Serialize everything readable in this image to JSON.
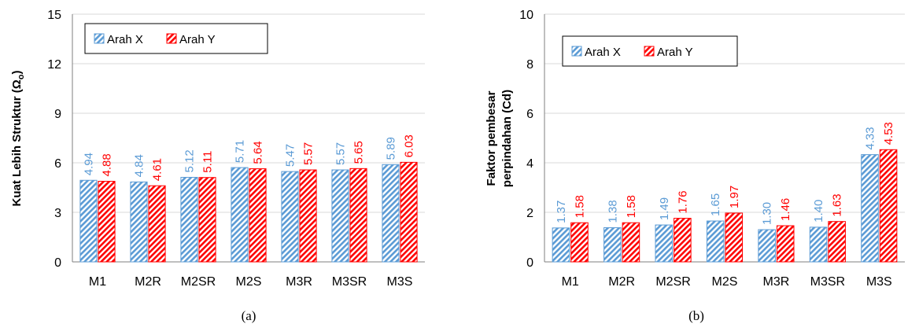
{
  "colors": {
    "arah_x": "#5b9bd5",
    "arah_y": "#ff0000",
    "gridline": "#d9d9d9",
    "axis": "#7f7f7f"
  },
  "chart_data": [
    {
      "type": "bar",
      "caption": "(a)",
      "ylabel": "Kuat Lebih Struktur (Ω₀)",
      "xlabel": "",
      "ylim": [
        0,
        15
      ],
      "yticks": [
        "0",
        "3",
        "6",
        "9",
        "12",
        "15"
      ],
      "ytick_values": [
        0,
        3,
        6,
        9,
        12,
        15
      ],
      "grid": true,
      "legend_position": "top-left",
      "categories": [
        "M1",
        "M2R",
        "M2SR",
        "M2S",
        "M3R",
        "M3SR",
        "M3S"
      ],
      "series": [
        {
          "name": "Arah X",
          "color": "#5b9bd5",
          "values": [
            4.94,
            4.84,
            5.12,
            5.71,
            5.47,
            5.57,
            5.89
          ],
          "labels": [
            "4.94",
            "4.84",
            "5.12",
            "5.71",
            "5.47",
            "5.57",
            "5.89"
          ]
        },
        {
          "name": "Arah Y",
          "color": "#ff0000",
          "values": [
            4.88,
            4.61,
            5.11,
            5.64,
            5.57,
            5.65,
            6.03
          ],
          "labels": [
            "4.88",
            "4.61",
            "5.11",
            "5.64",
            "5.57",
            "5.65",
            "6.03"
          ]
        }
      ]
    },
    {
      "type": "bar",
      "caption": "(b)",
      "ylabel": "Faktor pembesar perpindahan (Cd)",
      "ylabel_lines": [
        "Faktor pembesar",
        "perpindahan (Cd)"
      ],
      "xlabel": "",
      "ylim": [
        0,
        10
      ],
      "yticks": [
        "0",
        "2",
        "4",
        "6",
        "8",
        "10"
      ],
      "ytick_values": [
        0,
        2,
        4,
        6,
        8,
        10
      ],
      "grid": true,
      "legend_position": "top-left",
      "categories": [
        "M1",
        "M2R",
        "M2SR",
        "M2S",
        "M3R",
        "M3SR",
        "M3S"
      ],
      "series": [
        {
          "name": "Arah X",
          "color": "#5b9bd5",
          "values": [
            1.37,
            1.38,
            1.49,
            1.65,
            1.3,
            1.4,
            4.33
          ],
          "labels": [
            "1.37",
            "1.38",
            "1.49",
            "1.65",
            "1.30",
            "1.40",
            "4.33"
          ]
        },
        {
          "name": "Arah Y",
          "color": "#ff0000",
          "values": [
            1.58,
            1.58,
            1.76,
            1.97,
            1.46,
            1.63,
            4.53
          ],
          "labels": [
            "1.58",
            "1.58",
            "1.76",
            "1.97",
            "1.46",
            "1.63",
            "4.53"
          ]
        }
      ]
    }
  ]
}
